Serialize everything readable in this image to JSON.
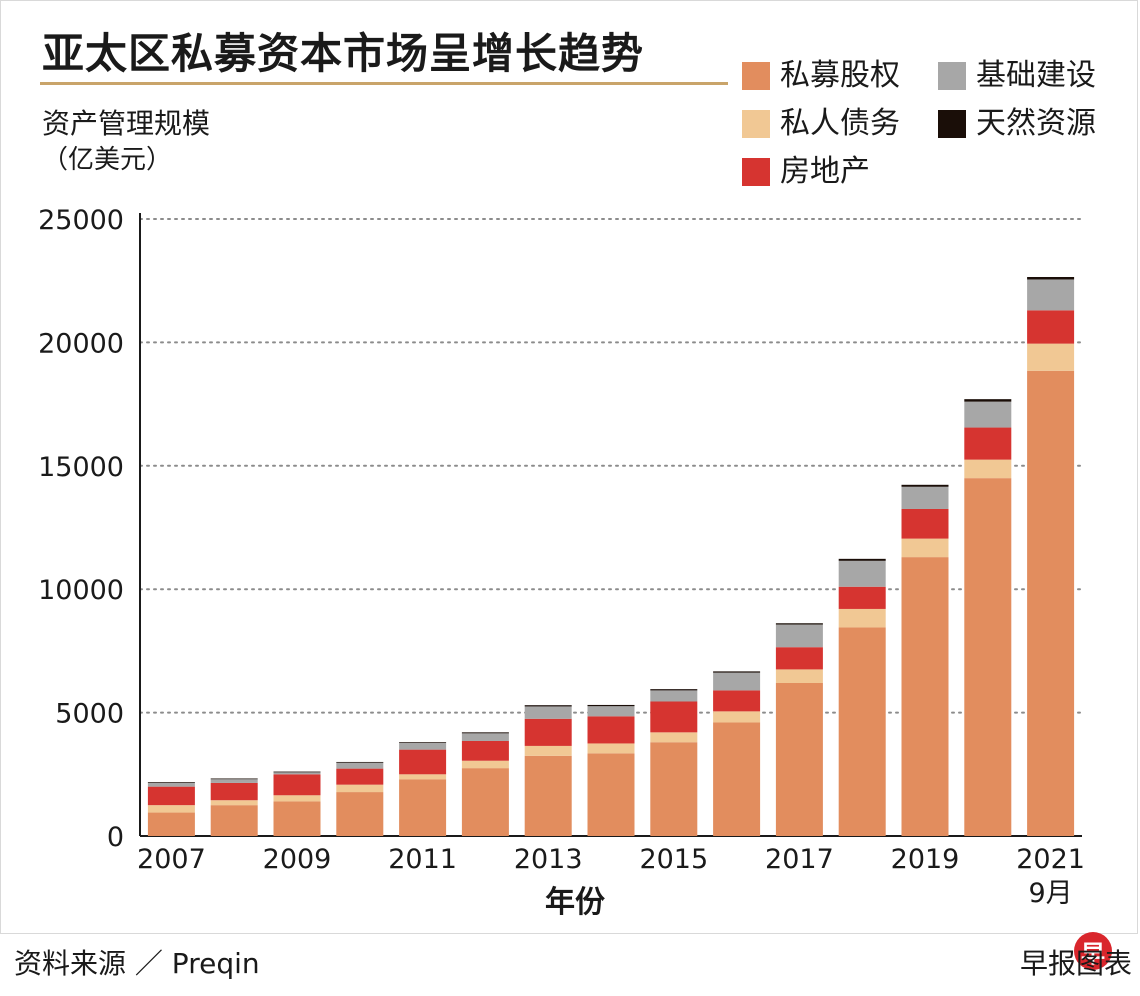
{
  "title": "亚太区私募资本市场呈增长趋势",
  "ylabel": "资产管理规模",
  "yunit": "（亿美元）",
  "legend": [
    {
      "label": "私募股权",
      "color": "#e28d5e"
    },
    {
      "label": "基础建设",
      "color": "#a7a7a7"
    },
    {
      "label": "私人债务",
      "color": "#f1c894"
    },
    {
      "label": "天然资源",
      "color": "#1a0e08"
    },
    {
      "label": "房地产",
      "color": "#d63430"
    }
  ],
  "chart_data": {
    "type": "bar",
    "stacked": true,
    "title": "亚太区私募资本市场呈增长趋势",
    "ylabel": "资产管理规模（亿美元）",
    "xlabel": "年份",
    "ylim": [
      0,
      25000
    ],
    "yticks": [
      "0",
      "5000",
      "10000",
      "15000",
      "20000",
      "25000"
    ],
    "grid": "dotted horizontal",
    "categories": [
      "2007",
      "2008",
      "2009",
      "2010",
      "2011",
      "2012",
      "2013",
      "2014",
      "2015",
      "2016",
      "2017",
      "2018",
      "2019",
      "2020",
      "2021 9月"
    ],
    "xtick_labels": [
      "2007",
      "",
      "2009",
      "",
      "2011",
      "",
      "2013",
      "",
      "2015",
      "",
      "2017",
      "",
      "2019",
      "",
      "2021"
    ],
    "xtick_sublabel": {
      "index": 14,
      "text": "9月"
    },
    "series": [
      {
        "name": "私募股权",
        "color": "#e28d5e",
        "values": [
          950,
          1250,
          1400,
          1780,
          2300,
          2750,
          3250,
          3350,
          3800,
          4600,
          6200,
          8450,
          11300,
          14500,
          18850
        ]
      },
      {
        "name": "私人债务",
        "color": "#f1c894",
        "values": [
          300,
          200,
          250,
          300,
          200,
          300,
          400,
          400,
          400,
          450,
          550,
          750,
          750,
          750,
          1100
        ]
      },
      {
        "name": "房地产",
        "color": "#d63430",
        "values": [
          750,
          700,
          850,
          650,
          1000,
          800,
          1100,
          1100,
          1250,
          850,
          900,
          900,
          1200,
          1300,
          1350
        ]
      },
      {
        "name": "基础建设",
        "color": "#a7a7a7",
        "values": [
          150,
          150,
          80,
          240,
          270,
          310,
          500,
          410,
          450,
          720,
          920,
          1050,
          900,
          1050,
          1250
        ]
      },
      {
        "name": "天然资源",
        "color": "#1a0e08",
        "values": [
          30,
          30,
          30,
          30,
          30,
          40,
          50,
          50,
          50,
          50,
          50,
          80,
          80,
          100,
          100
        ]
      }
    ]
  },
  "footer": {
    "source": "资料来源 ／ Preqin",
    "credit": "早报图表",
    "logo_char": "早"
  }
}
